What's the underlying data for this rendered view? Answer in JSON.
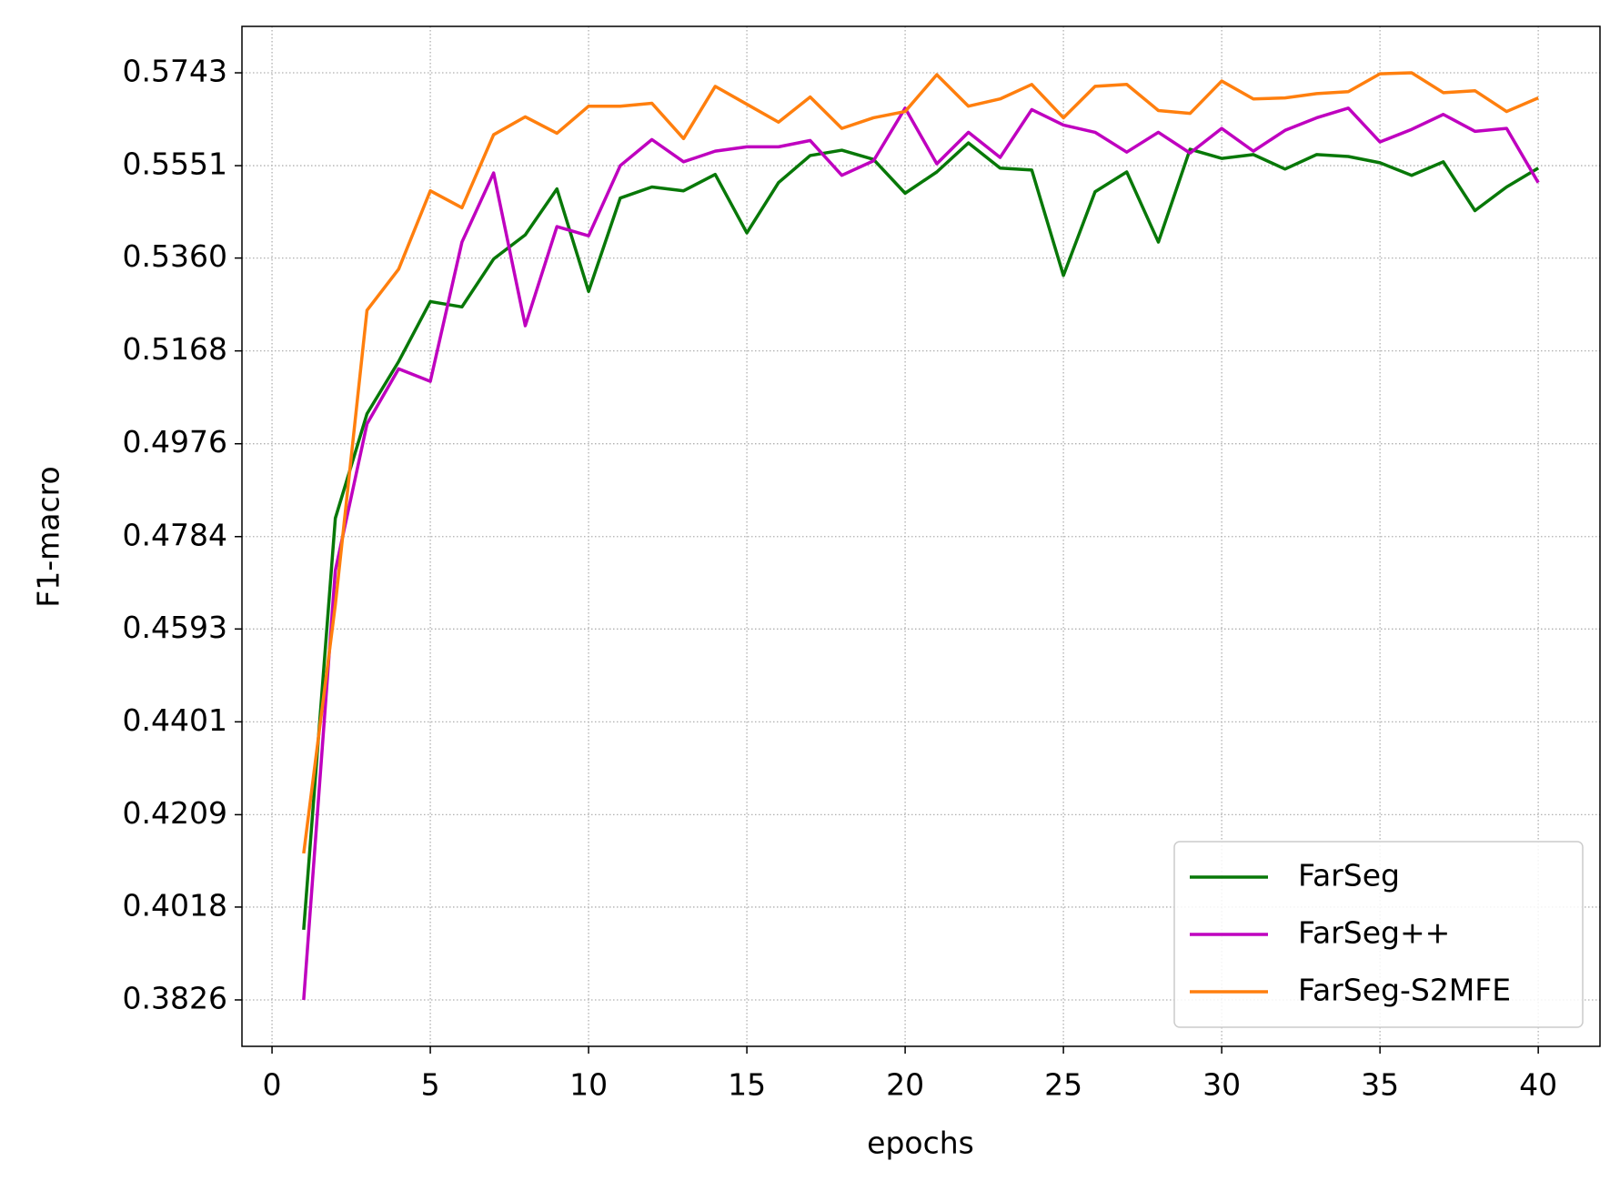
{
  "chart_data": {
    "type": "line",
    "x_label": "epochs",
    "y_label": "F1-macro",
    "x": [
      1,
      2,
      3,
      4,
      5,
      6,
      7,
      8,
      9,
      10,
      11,
      12,
      13,
      14,
      15,
      16,
      17,
      18,
      19,
      20,
      21,
      22,
      23,
      24,
      25,
      26,
      27,
      28,
      29,
      30,
      31,
      32,
      33,
      34,
      35,
      36,
      37,
      38,
      39,
      40
    ],
    "series": [
      {
        "name": "FarSeg",
        "color": "#087808",
        "values": [
          0.3971,
          0.4822,
          0.5038,
          0.5146,
          0.527,
          0.5259,
          0.5358,
          0.5408,
          0.5503,
          0.5291,
          0.5484,
          0.5507,
          0.5499,
          0.5533,
          0.5412,
          0.5516,
          0.5572,
          0.5583,
          0.5564,
          0.5494,
          0.5538,
          0.5598,
          0.5546,
          0.5542,
          0.5324,
          0.5497,
          0.5538,
          0.5393,
          0.5585,
          0.5566,
          0.5574,
          0.5544,
          0.5574,
          0.557,
          0.5557,
          0.5531,
          0.5559,
          0.5458,
          0.5507,
          0.5546
        ]
      },
      {
        "name": "FarSeg++",
        "color": "#bf00bf",
        "values": [
          0.3826,
          0.4714,
          0.5017,
          0.5131,
          0.5105,
          0.5393,
          0.5536,
          0.522,
          0.5425,
          0.5406,
          0.5551,
          0.5605,
          0.5559,
          0.5581,
          0.559,
          0.559,
          0.5603,
          0.5531,
          0.5561,
          0.567,
          0.5555,
          0.562,
          0.5568,
          0.5667,
          0.5635,
          0.562,
          0.5579,
          0.562,
          0.5577,
          0.5628,
          0.5581,
          0.5624,
          0.565,
          0.567,
          0.56,
          0.5626,
          0.5657,
          0.5622,
          0.5628,
          0.5516
        ]
      },
      {
        "name": "FarSeg-S2MFE",
        "color": "#ff7f0e",
        "values": [
          0.4129,
          0.4643,
          0.5252,
          0.5337,
          0.5499,
          0.5464,
          0.5615,
          0.5652,
          0.5618,
          0.5674,
          0.5674,
          0.568,
          0.5607,
          0.5715,
          0.5678,
          0.5641,
          0.5693,
          0.5628,
          0.565,
          0.5663,
          0.5739,
          0.5674,
          0.5689,
          0.5719,
          0.565,
          0.5715,
          0.5719,
          0.5665,
          0.5659,
          0.5726,
          0.5689,
          0.5691,
          0.57,
          0.5704,
          0.5741,
          0.5743,
          0.5702,
          0.5706,
          0.5663,
          0.5691
        ]
      }
    ],
    "xlim": [
      -0.95,
      41.95
    ],
    "xticks": [
      0,
      5,
      10,
      15,
      20,
      25,
      30,
      35,
      40
    ],
    "ylim": [
      0.373,
      0.5839
    ],
    "yticks": [
      0.3826,
      0.4018,
      0.4209,
      0.4401,
      0.4593,
      0.4784,
      0.4976,
      0.5168,
      {
        "value": 0.536,
        "label": "0.5360"
      },
      0.5551,
      0.5743
    ],
    "grid": true,
    "legend_position": "lower right"
  }
}
